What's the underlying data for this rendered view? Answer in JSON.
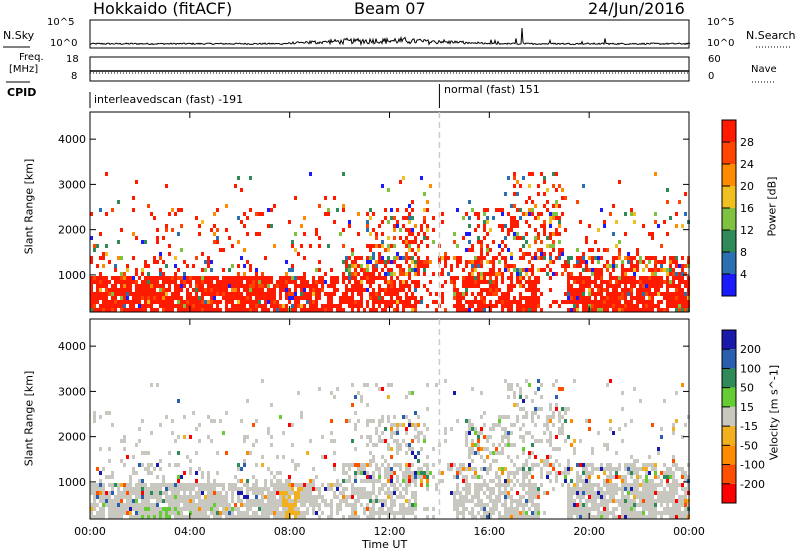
{
  "header": {
    "station": "Hokkaido (fitACF)",
    "beam": "Beam 07",
    "date": "24/Jun/2016"
  },
  "top_panels": {
    "nsky_label": "N.Sky",
    "freq_label_1": "Freq.",
    "freq_label_2": "[MHz]",
    "cpid_label": "CPID",
    "nsearch_label": "N.Search",
    "nave_label": "Nave",
    "nsky_ticks": [
      "10^5",
      "10^0"
    ],
    "nsky_right_ticks": [
      "10^5",
      "10^0"
    ],
    "freq_ticks": [
      "18",
      "8"
    ],
    "nave_ticks": [
      "60",
      "0"
    ],
    "cpid_segments": [
      {
        "label": "interleavedscan (fast) -191",
        "start_hour": 0,
        "end_hour": 14
      },
      {
        "label": "normal (fast) 151",
        "start_hour": 14,
        "end_hour": 24
      }
    ]
  },
  "chart_data": [
    {
      "type": "heatmap",
      "name": "power",
      "xlabel": "",
      "ylabel": "Slant Range [km]",
      "xlim": [
        0,
        24
      ],
      "ylim": [
        180,
        4600
      ],
      "yticks": [
        1000,
        2000,
        3000,
        4000
      ],
      "colorbar": {
        "label": "Power [dB]",
        "ticks": [
          "4",
          "8",
          "12",
          "16",
          "20",
          "24",
          "28"
        ],
        "colors": [
          "#1a1aff",
          "#2a6fb0",
          "#2e8b57",
          "#7fc241",
          "#f0c020",
          "#ff8c00",
          "#ff4500",
          "#ff1a00"
        ]
      }
    },
    {
      "type": "heatmap",
      "name": "velocity",
      "xlabel": "Time UT",
      "ylabel": "Slant Range [km]",
      "xlim": [
        0,
        24
      ],
      "ylim": [
        180,
        4600
      ],
      "yticks": [
        1000,
        2000,
        3000,
        4000
      ],
      "xticks": [
        "00:00",
        "04:00",
        "08:00",
        "12:00",
        "16:00",
        "20:00",
        "00:00"
      ],
      "colorbar": {
        "label": "Velocity [m s^-1]",
        "ticks": [
          "200",
          "100",
          "50",
          "15",
          "-15",
          "-50",
          "-100",
          "-200"
        ],
        "colors": [
          "#1a1aaa",
          "#2a5fb0",
          "#2e8b57",
          "#66cc33",
          "#c8c8c0",
          "#f0b020",
          "#ff8c00",
          "#ff5000",
          "#ff0000"
        ]
      }
    }
  ],
  "colors": {
    "low_noise": "#000000",
    "divider": "#cccccc"
  }
}
